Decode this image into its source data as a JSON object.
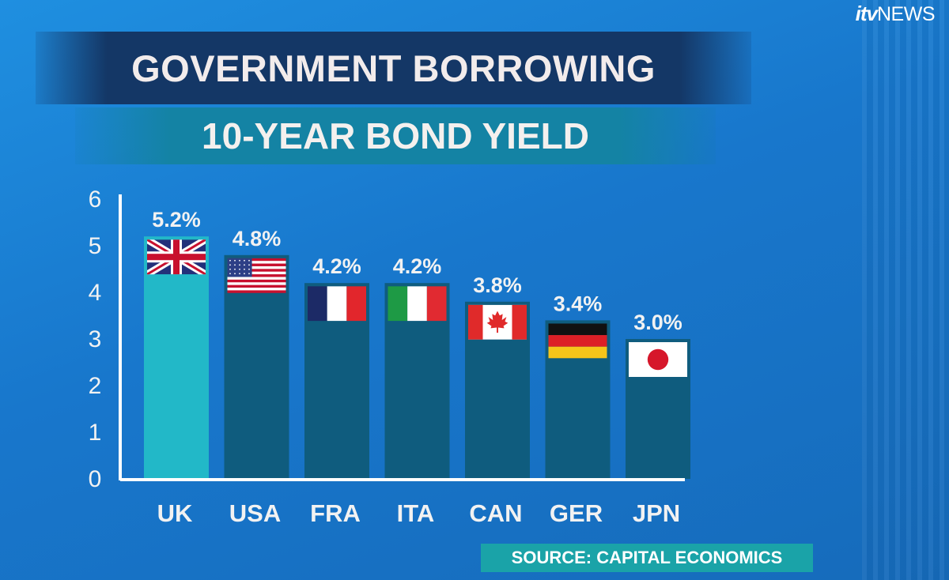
{
  "logo": {
    "brand_a": "itv",
    "brand_b": "NEWS"
  },
  "header": {
    "title": "GOVERNMENT BORROWING",
    "subtitle": "10-YEAR BOND YIELD"
  },
  "source": "SOURCE:  CAPITAL ECONOMICS",
  "colors": {
    "highlight_bar": "#22b8c8",
    "bar": "#0f5c7e",
    "axis": "#ffffff",
    "text": "#f2f2f2"
  },
  "chart_data": {
    "type": "bar",
    "title": "10-YEAR BOND YIELD",
    "xlabel": "",
    "ylabel": "",
    "ylim": [
      0,
      6
    ],
    "yticks": [
      0,
      1,
      2,
      3,
      4,
      5,
      6
    ],
    "grid": false,
    "categories": [
      "UK",
      "USA",
      "FRA",
      "ITA",
      "CAN",
      "GER",
      "JPN"
    ],
    "values": [
      5.2,
      4.8,
      4.2,
      4.2,
      3.8,
      3.4,
      3.0
    ],
    "data_labels": [
      "5.2%",
      "4.8%",
      "4.2%",
      "4.2%",
      "3.8%",
      "3.4%",
      "3.0%"
    ],
    "flags": [
      "uk-flag-icon",
      "usa-flag-icon",
      "france-flag-icon",
      "italy-flag-icon",
      "canada-flag-icon",
      "germany-flag-icon",
      "japan-flag-icon"
    ],
    "highlight_index": 0
  }
}
